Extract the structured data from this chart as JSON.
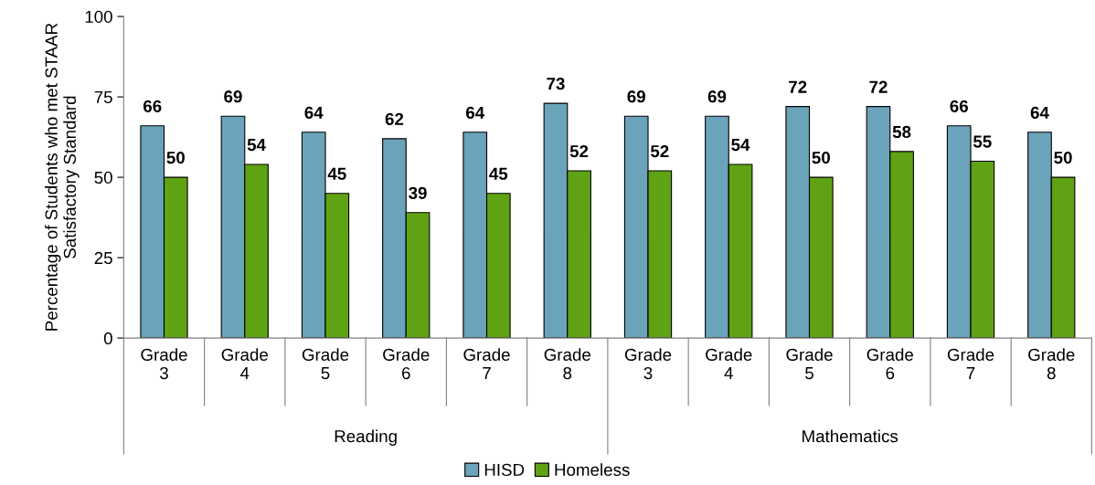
{
  "chart_data": {
    "type": "bar",
    "ylabel": "Percentage of Students who met STAAR Satisfactory Standard",
    "categories": [
      "Grade 3",
      "Grade 4",
      "Grade 5",
      "Grade 6",
      "Grade 7",
      "Grade 8",
      "Grade 3",
      "Grade 4",
      "Grade 5",
      "Grade 6",
      "Grade 7",
      "Grade 8"
    ],
    "series": [
      {
        "name": "HISD",
        "color": "#6aa3ba",
        "values": [
          66,
          69,
          64,
          62,
          64,
          73,
          69,
          69,
          72,
          72,
          66,
          64
        ]
      },
      {
        "name": "Homeless",
        "color": "#5fa315",
        "values": [
          50,
          54,
          45,
          39,
          45,
          52,
          52,
          54,
          50,
          58,
          55,
          50
        ]
      }
    ],
    "annotations": [
      "Reading",
      "Mathematics"
    ],
    "ylim": [
      0,
      100
    ],
    "yticks": [
      0,
      25,
      50,
      75,
      100
    ],
    "data_labels": true,
    "grid": false,
    "legend": "bottom"
  }
}
